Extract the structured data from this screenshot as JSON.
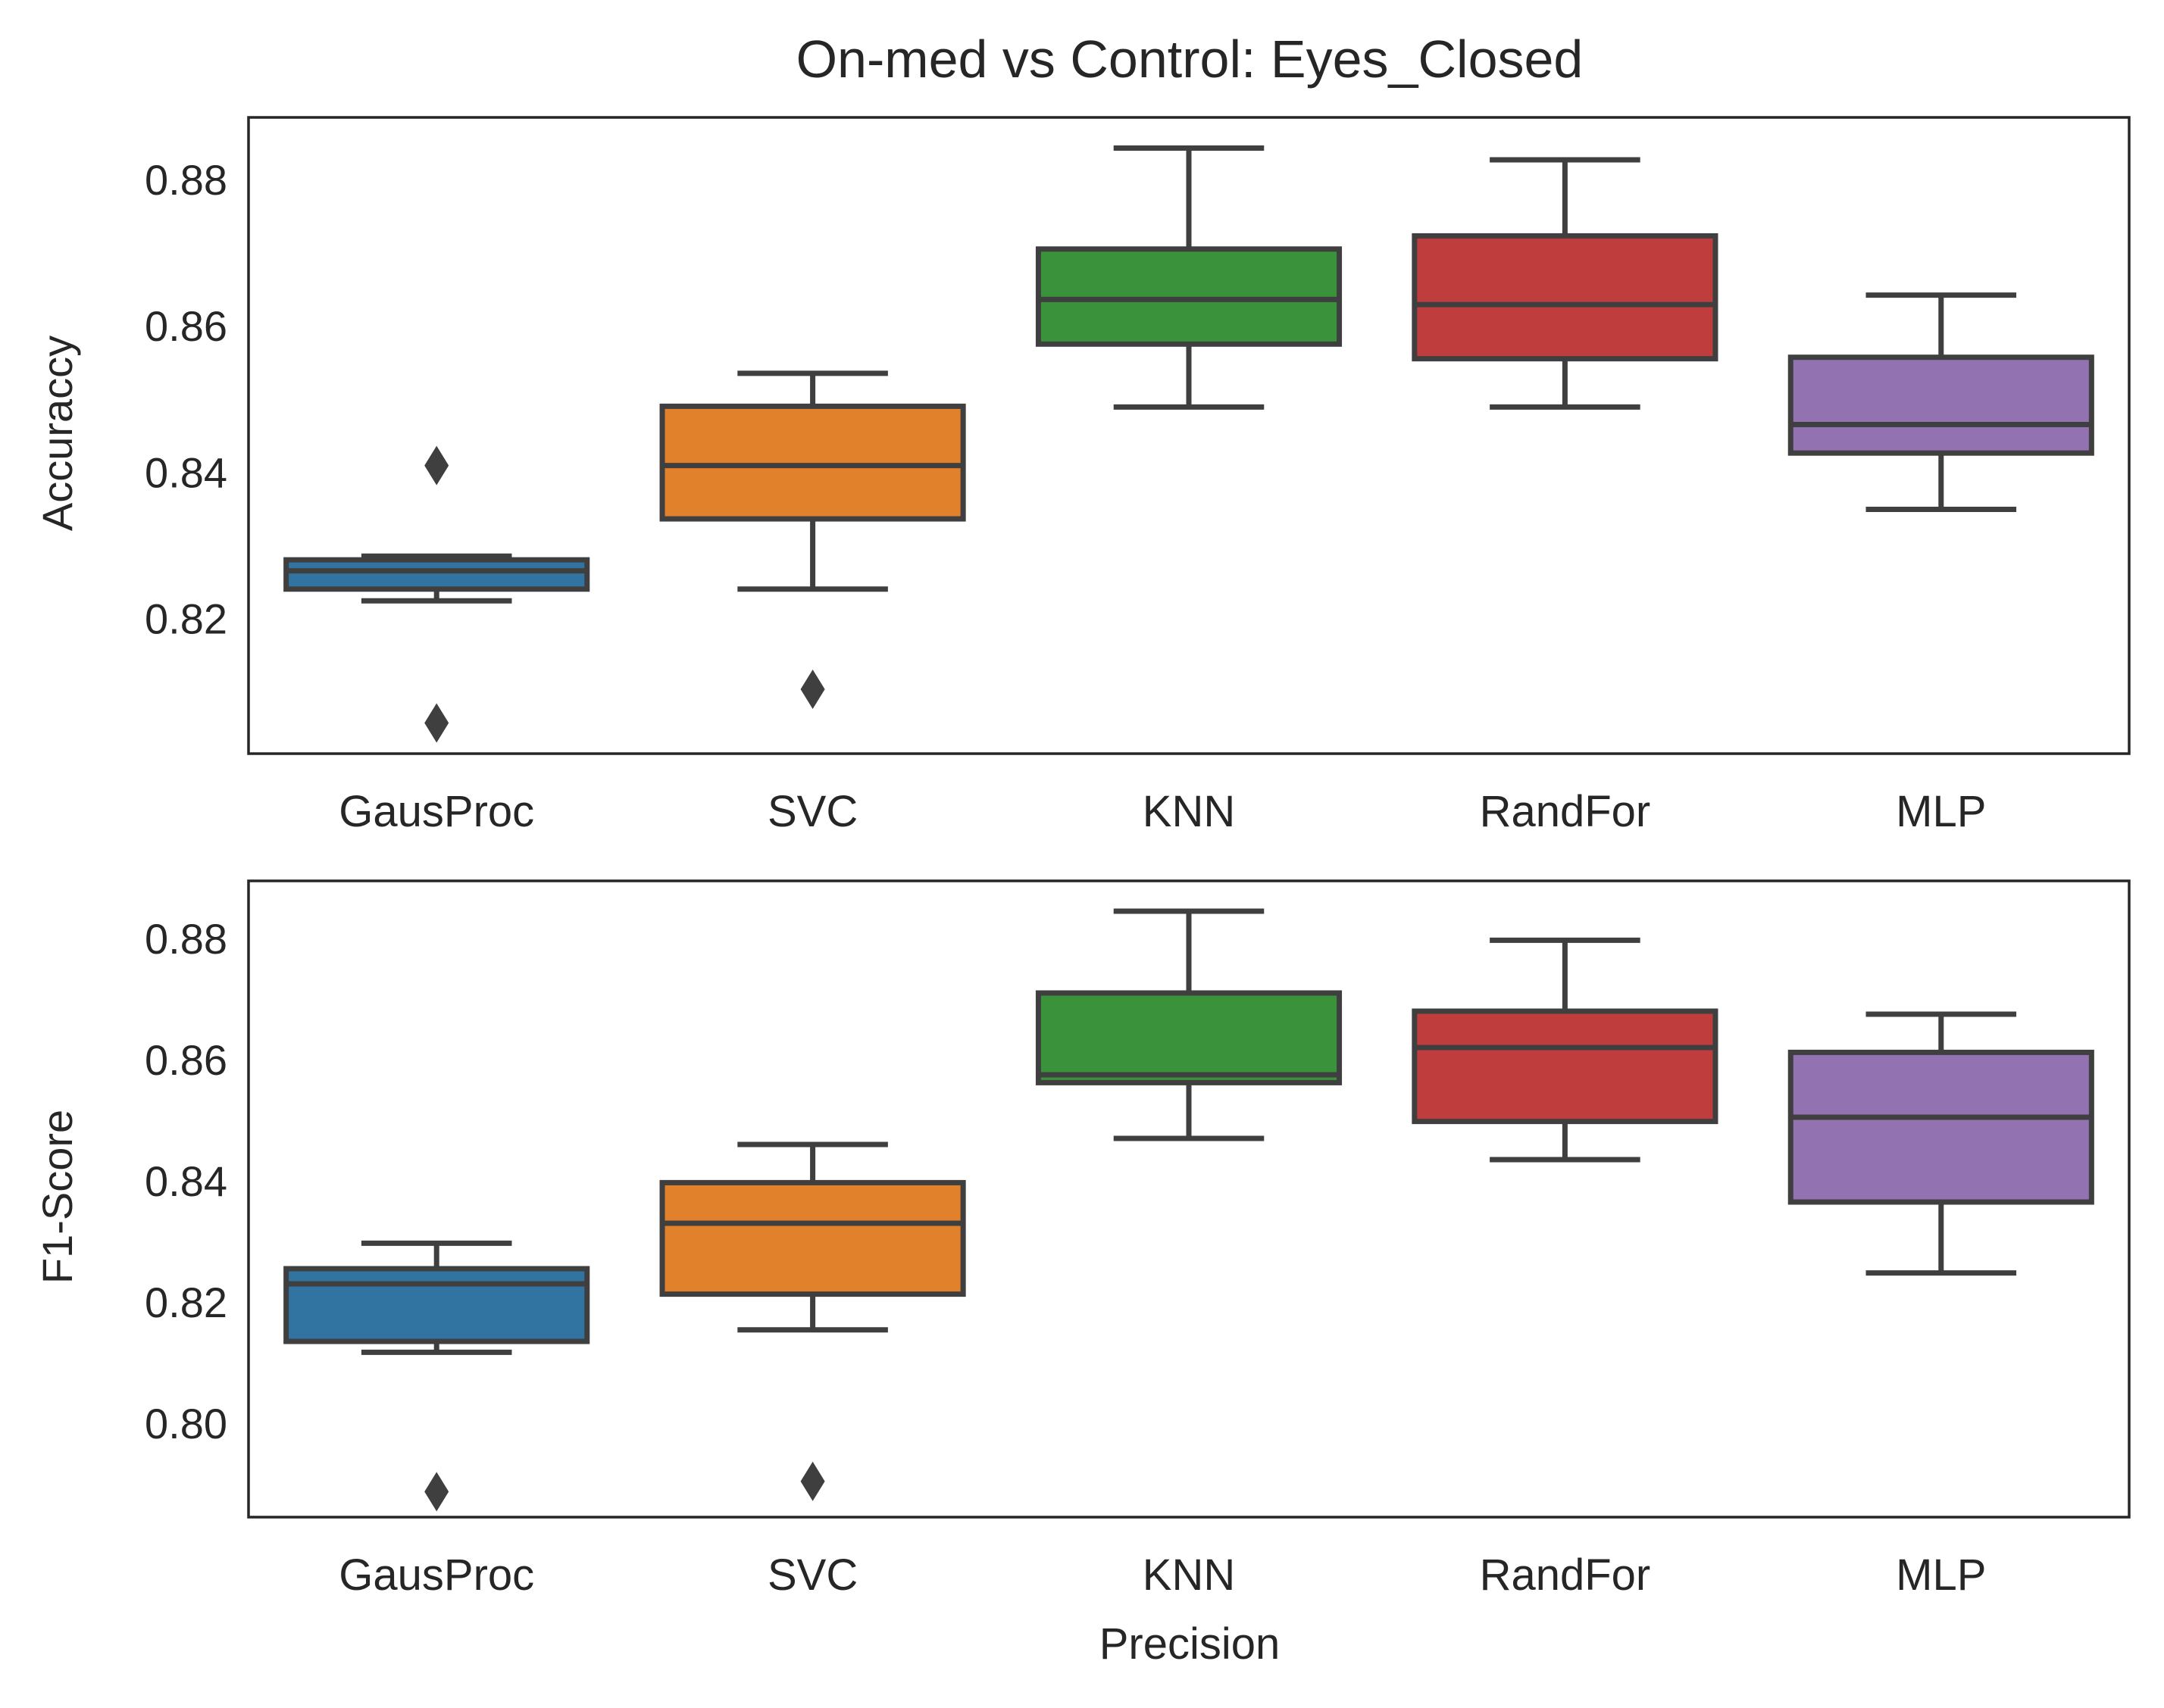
{
  "figure_title": "On-med vs Control: Eyes_Closed",
  "colors": {
    "GausProc": "#3274a1",
    "SVC": "#e1812c",
    "KNN": "#3a923a",
    "RandFor": "#c03d3e",
    "MLP": "#9372b2",
    "box_edge": "#3f3f3f",
    "axes_edge": "#262626"
  },
  "chart_data": [
    {
      "type": "box",
      "title": "On-med vs Control: Eyes_Closed",
      "xlabel": "",
      "ylabel": "Accuraccy",
      "categories": [
        "GausProc",
        "SVC",
        "KNN",
        "RandFor",
        "MLP"
      ],
      "ylim": [
        0.8015,
        0.8885
      ],
      "yticks": [
        0.82,
        0.84,
        0.86,
        0.88
      ],
      "ytick_labels": [
        "0.82",
        "0.84",
        "0.86",
        "0.88"
      ],
      "grid": false,
      "boxes": [
        {
          "category": "GausProc",
          "whisker_low": 0.8224,
          "q1": 0.824,
          "median": 0.8265,
          "q3": 0.828,
          "whisker_high": 0.8285,
          "outliers": [
            0.8409,
            0.8057
          ]
        },
        {
          "category": "SVC",
          "whisker_low": 0.824,
          "q1": 0.8336,
          "median": 0.8409,
          "q3": 0.849,
          "whisker_high": 0.8535,
          "outliers": [
            0.8103
          ]
        },
        {
          "category": "KNN",
          "whisker_low": 0.8489,
          "q1": 0.8575,
          "median": 0.8636,
          "q3": 0.8705,
          "whisker_high": 0.8843,
          "outliers": []
        },
        {
          "category": "RandFor",
          "whisker_low": 0.8489,
          "q1": 0.8555,
          "median": 0.8629,
          "q3": 0.8723,
          "whisker_high": 0.8827,
          "outliers": []
        },
        {
          "category": "MLP",
          "whisker_low": 0.8349,
          "q1": 0.8426,
          "median": 0.8465,
          "q3": 0.8557,
          "whisker_high": 0.8642,
          "outliers": []
        }
      ]
    },
    {
      "type": "box",
      "title": "",
      "xlabel": "Precision",
      "ylabel": "F1-Score",
      "categories": [
        "GausProc",
        "SVC",
        "KNN",
        "RandFor",
        "MLP"
      ],
      "ylim": [
        0.7845,
        0.8895
      ],
      "yticks": [
        0.8,
        0.82,
        0.84,
        0.86,
        0.88
      ],
      "ytick_labels": [
        "0.80",
        "0.82",
        "0.84",
        "0.86",
        "0.88"
      ],
      "grid": false,
      "boxes": [
        {
          "category": "GausProc",
          "whisker_low": 0.8117,
          "q1": 0.8135,
          "median": 0.823,
          "q3": 0.8255,
          "whisker_high": 0.8297,
          "outliers": [
            0.7887
          ]
        },
        {
          "category": "SVC",
          "whisker_low": 0.8154,
          "q1": 0.8213,
          "median": 0.833,
          "q3": 0.8397,
          "whisker_high": 0.846,
          "outliers": [
            0.7904
          ]
        },
        {
          "category": "KNN",
          "whisker_low": 0.847,
          "q1": 0.8562,
          "median": 0.8575,
          "q3": 0.871,
          "whisker_high": 0.8845,
          "outliers": []
        },
        {
          "category": "RandFor",
          "whisker_low": 0.8435,
          "q1": 0.8498,
          "median": 0.862,
          "q3": 0.868,
          "whisker_high": 0.8797,
          "outliers": []
        },
        {
          "category": "MLP",
          "whisker_low": 0.8248,
          "q1": 0.8365,
          "median": 0.8505,
          "q3": 0.8612,
          "whisker_high": 0.8675,
          "outliers": []
        }
      ]
    }
  ]
}
